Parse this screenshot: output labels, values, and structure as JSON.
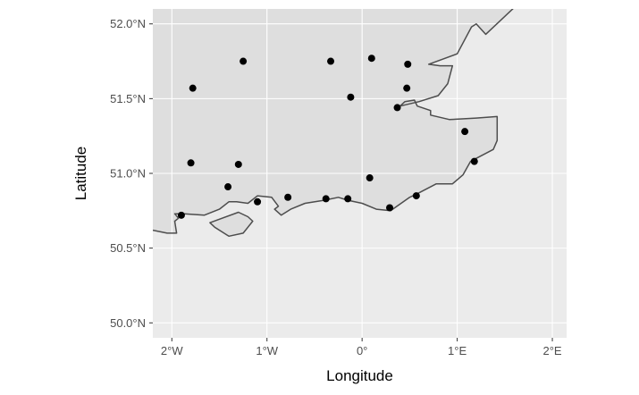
{
  "chart_data": {
    "type": "scatter",
    "projection": "geographic",
    "xlabel": "Longitude",
    "ylabel": "Latitude",
    "xlim": [
      -2.2,
      2.15
    ],
    "ylim": [
      49.9,
      52.1
    ],
    "x_ticks": [
      {
        "value": -2,
        "label": "2°W"
      },
      {
        "value": -1,
        "label": "1°W"
      },
      {
        "value": 0,
        "label": "0°"
      },
      {
        "value": 1,
        "label": "1°E"
      },
      {
        "value": 2,
        "label": "2°E"
      }
    ],
    "y_ticks": [
      {
        "value": 50.0,
        "label": "50.0°N"
      },
      {
        "value": 50.5,
        "label": "50.5°N"
      },
      {
        "value": 51.0,
        "label": "51.0°N"
      },
      {
        "value": 51.5,
        "label": "51.5°N"
      },
      {
        "value": 52.0,
        "label": "52.0°N"
      }
    ],
    "grid": true,
    "colors": {
      "panel_background": "#ebebeb",
      "land_fill": "#dedede",
      "coastline": "#4d4d4d",
      "gridline": "#ffffff",
      "point": "#000000",
      "tick_label": "#4d4d4d"
    },
    "mainland": [
      [
        -2.2,
        50.62
      ],
      [
        -2.05,
        50.6
      ],
      [
        -1.95,
        50.6
      ],
      [
        -1.97,
        50.68
      ],
      [
        -1.93,
        50.7
      ],
      [
        -1.97,
        50.73
      ],
      [
        -1.87,
        50.73
      ],
      [
        -1.66,
        50.72
      ],
      [
        -1.5,
        50.76
      ],
      [
        -1.4,
        50.81
      ],
      [
        -1.32,
        50.81
      ],
      [
        -1.2,
        50.8
      ],
      [
        -1.1,
        50.85
      ],
      [
        -0.95,
        50.84
      ],
      [
        -0.88,
        50.78
      ],
      [
        -0.92,
        50.76
      ],
      [
        -0.85,
        50.72
      ],
      [
        -0.75,
        50.76
      ],
      [
        -0.6,
        50.8
      ],
      [
        -0.4,
        50.82
      ],
      [
        -0.25,
        50.84
      ],
      [
        -0.15,
        50.82
      ],
      [
        0.0,
        50.8
      ],
      [
        0.15,
        50.76
      ],
      [
        0.3,
        50.75
      ],
      [
        0.5,
        50.84
      ],
      [
        0.6,
        50.87
      ],
      [
        0.78,
        50.93
      ],
      [
        0.95,
        50.93
      ],
      [
        1.06,
        50.99
      ],
      [
        1.14,
        51.08
      ],
      [
        1.38,
        51.16
      ],
      [
        1.42,
        51.22
      ],
      [
        1.42,
        51.38
      ],
      [
        1.2,
        51.37
      ],
      [
        0.92,
        51.36
      ],
      [
        0.72,
        51.39
      ],
      [
        0.72,
        51.42
      ],
      [
        0.58,
        51.45
      ],
      [
        0.55,
        51.49
      ],
      [
        0.45,
        51.48
      ],
      [
        0.4,
        51.45
      ],
      [
        0.6,
        51.48
      ],
      [
        0.8,
        51.52
      ],
      [
        0.9,
        51.6
      ],
      [
        0.95,
        51.72
      ],
      [
        0.82,
        51.72
      ],
      [
        0.7,
        51.73
      ],
      [
        1.0,
        51.8
      ],
      [
        1.15,
        51.98
      ],
      [
        1.2,
        52.0
      ],
      [
        1.3,
        51.93
      ],
      [
        1.6,
        52.11
      ],
      [
        1.6,
        52.14
      ],
      [
        -2.2,
        52.14
      ]
    ],
    "islands": [
      [
        [
          -1.6,
          50.67
        ],
        [
          -1.3,
          50.74
        ],
        [
          -1.2,
          50.71
        ],
        [
          -1.15,
          50.68
        ],
        [
          -1.25,
          50.6
        ],
        [
          -1.4,
          50.58
        ],
        [
          -1.55,
          50.64
        ]
      ]
    ],
    "points": [
      {
        "x": -1.78,
        "y": 51.57
      },
      {
        "x": -1.25,
        "y": 51.75
      },
      {
        "x": -0.33,
        "y": 51.75
      },
      {
        "x": 0.1,
        "y": 51.77
      },
      {
        "x": 0.48,
        "y": 51.73
      },
      {
        "x": 0.47,
        "y": 51.57
      },
      {
        "x": -0.12,
        "y": 51.51
      },
      {
        "x": 0.37,
        "y": 51.44
      },
      {
        "x": 1.08,
        "y": 51.28
      },
      {
        "x": 1.18,
        "y": 51.08
      },
      {
        "x": -1.8,
        "y": 51.07
      },
      {
        "x": -1.3,
        "y": 51.06
      },
      {
        "x": 0.08,
        "y": 50.97
      },
      {
        "x": -1.41,
        "y": 50.91
      },
      {
        "x": -0.78,
        "y": 50.84
      },
      {
        "x": -0.38,
        "y": 50.83
      },
      {
        "x": -0.15,
        "y": 50.83
      },
      {
        "x": 0.57,
        "y": 50.85
      },
      {
        "x": -1.1,
        "y": 50.81
      },
      {
        "x": 0.29,
        "y": 50.77
      },
      {
        "x": -1.9,
        "y": 50.72
      }
    ]
  }
}
